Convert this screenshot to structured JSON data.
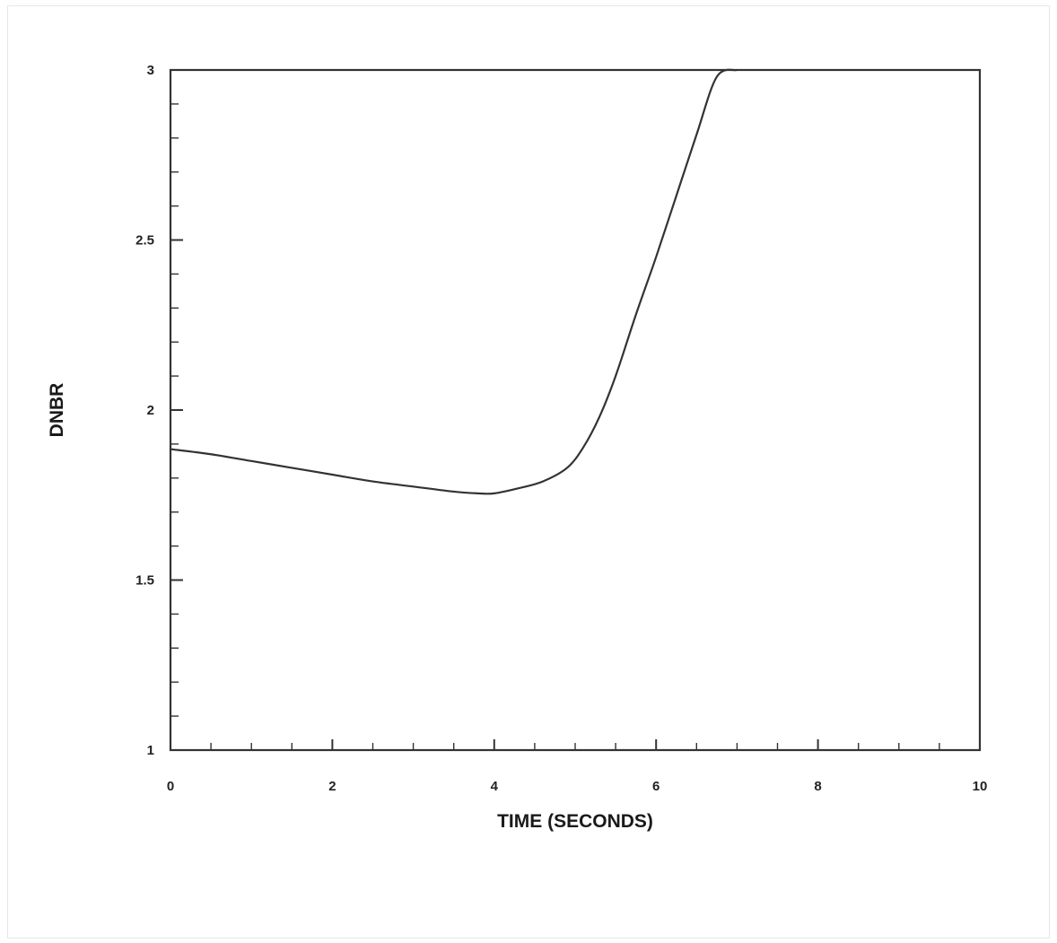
{
  "chart_data": {
    "type": "line",
    "xlabel": "TIME (SECONDS)",
    "ylabel": "DNBR",
    "xlim": [
      0,
      10
    ],
    "ylim": [
      1,
      3
    ],
    "x_ticks": [
      0,
      2,
      4,
      6,
      8,
      10
    ],
    "x_tick_labels": [
      "0",
      "2",
      "4",
      "6",
      "8",
      "10"
    ],
    "y_ticks": [
      1,
      1.5,
      2,
      2.5,
      3
    ],
    "y_tick_labels": [
      "1",
      "1.5",
      "2",
      "2.5",
      "3"
    ],
    "x_minor_step": 0.5,
    "y_minor_step": 0.1,
    "grid": false,
    "legend": "none",
    "line_color": "#333333",
    "series": [
      {
        "x": [
          0,
          0.5,
          1,
          1.5,
          2,
          2.5,
          3,
          3.5,
          3.8,
          4,
          4.3,
          4.6,
          4.9,
          5.1,
          5.3,
          5.5,
          5.75,
          6,
          6.25,
          6.5,
          6.75,
          7.0
        ],
        "y": [
          1.885,
          1.87,
          1.85,
          1.83,
          1.81,
          1.79,
          1.775,
          1.76,
          1.755,
          1.755,
          1.77,
          1.79,
          1.83,
          1.89,
          1.98,
          2.1,
          2.28,
          2.45,
          2.63,
          2.81,
          2.98,
          3.0
        ]
      }
    ]
  }
}
